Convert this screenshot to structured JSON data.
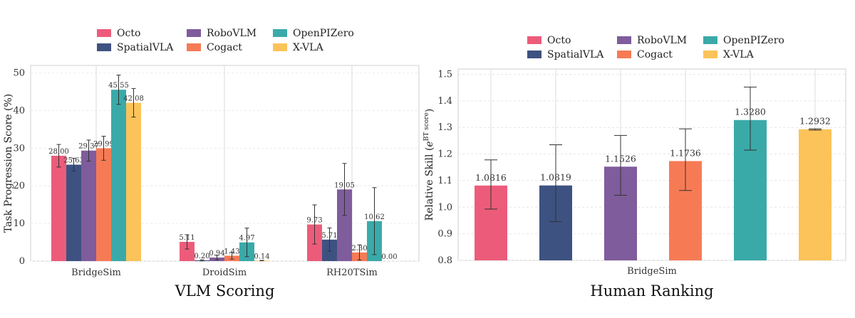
{
  "chart_data": [
    {
      "type": "bar",
      "title": "",
      "caption": "VLM Scoring",
      "xlabel": "",
      "ylabel": "Task Progression Score (%)",
      "ylim": [
        0,
        52
      ],
      "yticks": [
        "0",
        "10",
        "20",
        "30",
        "40",
        "50"
      ],
      "categories": [
        "BridgeSim",
        "DroidSim",
        "RH20TSim"
      ],
      "grid": true,
      "legend_position": "top",
      "series": [
        {
          "name": "Octo",
          "color": "#ec5c7a",
          "values": [
            28.0,
            5.11,
            9.73
          ],
          "errors": [
            3.0,
            1.9,
            5.2
          ],
          "labels": [
            "28.00",
            "5.11",
            "9.73"
          ]
        },
        {
          "name": "SpatialVLA",
          "color": "#3e5282",
          "values": [
            25.63,
            0.2,
            5.71
          ],
          "errors": [
            1.7,
            0.15,
            3.1
          ],
          "labels": [
            "25.63",
            "0.20",
            "5.71"
          ]
        },
        {
          "name": "RoboVLM",
          "color": "#7f5c9c",
          "values": [
            29.37,
            0.94,
            19.05
          ],
          "errors": [
            2.8,
            0.6,
            6.9
          ],
          "labels": [
            "29.37",
            "0.94",
            "19.05"
          ]
        },
        {
          "name": "Cogact",
          "color": "#f67b55",
          "values": [
            29.99,
            1.43,
            2.3
          ],
          "errors": [
            3.2,
            0.9,
            2.0
          ],
          "labels": [
            "29.99",
            "1.43",
            "2.30"
          ]
        },
        {
          "name": "OpenPIZero",
          "color": "#3aaaa9",
          "values": [
            45.55,
            4.97,
            10.62
          ],
          "errors": [
            3.9,
            3.8,
            8.9
          ],
          "labels": [
            "45.55",
            "4.97",
            "10.62"
          ]
        },
        {
          "name": "X-VLA",
          "color": "#fbc359",
          "values": [
            42.08,
            0.14,
            0.0
          ],
          "errors": [
            3.8,
            0.05,
            0.0
          ],
          "labels": [
            "42.08",
            "0.14",
            "0.00"
          ]
        }
      ]
    },
    {
      "type": "bar",
      "title": "",
      "caption": "Human Ranking",
      "xlabel": "BridgeSim",
      "ylabel": "Relative Skill (e^BT score)",
      "ylabel_main": "Relative Skill (",
      "ylabel_base": "e",
      "ylabel_sup": "BT score",
      "ylabel_end": ")",
      "ylim": [
        0.8,
        1.52
      ],
      "yticks": [
        "0.8",
        "0.9",
        "1.0",
        "1.1",
        "1.2",
        "1.3",
        "1.4",
        "1.5"
      ],
      "grid": true,
      "legend_position": "top",
      "series": [
        {
          "name": "Octo",
          "color": "#ec5c7a",
          "value": 1.0816,
          "err_low": 0.993,
          "err_high": 1.178,
          "label": "1.0816"
        },
        {
          "name": "SpatialVLA",
          "color": "#3e5282",
          "value": 1.0819,
          "err_low": 0.946,
          "err_high": 1.235,
          "label": "1.0819"
        },
        {
          "name": "RoboVLM",
          "color": "#7f5c9c",
          "value": 1.1526,
          "err_low": 1.045,
          "err_high": 1.27,
          "label": "1.1526"
        },
        {
          "name": "Cogact",
          "color": "#f67b55",
          "value": 1.1736,
          "err_low": 1.063,
          "err_high": 1.295,
          "label": "1.1736"
        },
        {
          "name": "OpenPIZero",
          "color": "#3aaaa9",
          "value": 1.328,
          "err_low": 1.215,
          "err_high": 1.452,
          "label": "1.3280"
        },
        {
          "name": "X-VLA",
          "color": "#fbc359",
          "value": 1.2932,
          "err_low": 1.29,
          "err_high": 1.295,
          "label": "1.2932"
        }
      ]
    }
  ]
}
